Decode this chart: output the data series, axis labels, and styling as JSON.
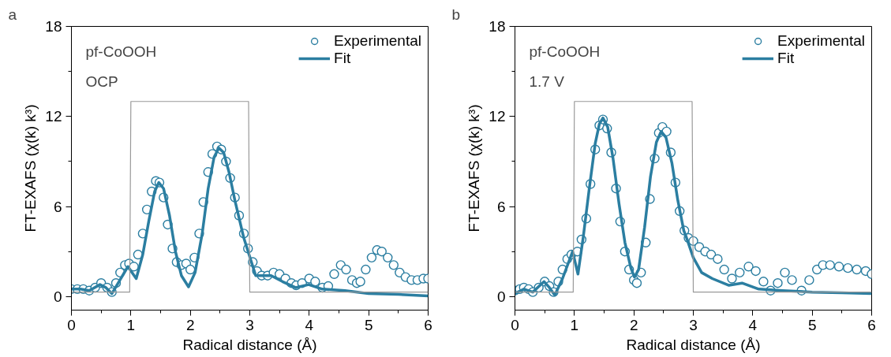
{
  "chart_data": [
    {
      "type": "line",
      "title": "a",
      "xlabel": "Radical distance (Å)",
      "ylabel": "FT-EXAFS (χ(k) k³)",
      "annotations": [
        "pf-CoOOH",
        "OCP"
      ],
      "xlim": [
        0,
        6
      ],
      "ylim": [
        -0.9,
        18
      ],
      "xticks": [
        0,
        1,
        2,
        3,
        4,
        5,
        6
      ],
      "yticks": [
        0,
        6,
        12,
        18
      ],
      "grid": false,
      "legend": "top right",
      "series": [
        {
          "name": "Experimental",
          "type": "scatter",
          "marker": "circle",
          "color": "#2b7ea1",
          "x": [
            0,
            0.1,
            0.2,
            0.3,
            0.4,
            0.5,
            0.6,
            0.68,
            0.75,
            0.82,
            0.9,
            0.97,
            1.05,
            1.12,
            1.2,
            1.27,
            1.35,
            1.42,
            1.48,
            1.55,
            1.62,
            1.7,
            1.77,
            1.85,
            1.93,
            2.0,
            2.07,
            2.15,
            2.22,
            2.3,
            2.37,
            2.45,
            2.52,
            2.6,
            2.67,
            2.75,
            2.82,
            2.9,
            2.97,
            3.05,
            3.12,
            3.2,
            3.3,
            3.4,
            3.5,
            3.6,
            3.7,
            3.78,
            3.88,
            4.0,
            4.1,
            4.22,
            4.32,
            4.42,
            4.53,
            4.62,
            4.72,
            4.8,
            4.86,
            4.95,
            5.05,
            5.14,
            5.22,
            5.32,
            5.42,
            5.52,
            5.62,
            5.72,
            5.82,
            5.92,
            6.0
          ],
          "values": [
            0.5,
            0.5,
            0.5,
            0.4,
            0.6,
            0.9,
            0.6,
            0.3,
            0.9,
            1.6,
            2.1,
            2.2,
            2.0,
            2.8,
            4.2,
            5.8,
            7.0,
            7.7,
            7.6,
            6.6,
            4.8,
            3.2,
            2.3,
            2.1,
            2.2,
            1.8,
            2.6,
            4.2,
            6.3,
            8.3,
            9.5,
            10.0,
            9.8,
            9.0,
            7.9,
            6.6,
            5.4,
            4.2,
            3.2,
            2.3,
            1.7,
            1.4,
            1.4,
            1.6,
            1.5,
            1.2,
            0.9,
            0.75,
            0.9,
            1.2,
            1.0,
            0.6,
            0.7,
            1.5,
            2.1,
            1.8,
            1.1,
            0.9,
            1.0,
            1.8,
            2.6,
            3.1,
            3.0,
            2.6,
            2.1,
            1.6,
            1.3,
            1.1,
            1.1,
            1.2,
            1.2
          ]
        },
        {
          "name": "Fit",
          "type": "line",
          "color": "#2b7ea1",
          "x": [
            0,
            0.15,
            0.3,
            0.48,
            0.58,
            0.68,
            0.8,
            0.95,
            1.09,
            1.2,
            1.3,
            1.4,
            1.47,
            1.55,
            1.65,
            1.75,
            1.85,
            1.97,
            2.08,
            2.2,
            2.3,
            2.4,
            2.48,
            2.56,
            2.65,
            2.75,
            2.9,
            3.1,
            3.36,
            3.55,
            3.77,
            3.99,
            4.22,
            4.6,
            5.0,
            5.5,
            6.0
          ],
          "values": [
            0.5,
            0.5,
            0.4,
            0.8,
            0.6,
            0.2,
            1.0,
            2.0,
            1.2,
            2.8,
            5.0,
            7.0,
            7.6,
            7.2,
            5.4,
            3.0,
            1.4,
            0.65,
            1.6,
            4.2,
            7.2,
            9.3,
            9.9,
            9.6,
            8.3,
            6.4,
            3.9,
            1.4,
            1.4,
            1.0,
            0.6,
            0.8,
            0.5,
            0.4,
            0.2,
            0.15,
            0.05
          ]
        },
        {
          "color": "#999999",
          "x": [
            0,
            0.98,
            1.0,
            2.98,
            3.0,
            6
          ],
          "values": [
            0.3,
            0.3,
            13,
            13,
            0.3,
            0.3
          ]
        }
      ]
    },
    {
      "type": "line",
      "title": "b",
      "xlabel": "Radical distance (Å)",
      "ylabel": "FT-EXAFS (χ(k) k³)",
      "annotations": [
        "pf-CoOOH",
        "1.7 V"
      ],
      "xlim": [
        0,
        6
      ],
      "ylim": [
        -0.9,
        18
      ],
      "xticks": [
        0,
        1,
        2,
        3,
        4,
        5,
        6
      ],
      "yticks": [
        0,
        6,
        12,
        18
      ],
      "grid": false,
      "legend": "top right",
      "series": [
        {
          "name": "Experimental",
          "type": "scatter",
          "marker": "circle",
          "color": "#2b7ea1",
          "x": [
            0,
            0.08,
            0.15,
            0.23,
            0.3,
            0.4,
            0.5,
            0.58,
            0.65,
            0.73,
            0.8,
            0.88,
            0.95,
            1.05,
            1.12,
            1.2,
            1.27,
            1.35,
            1.42,
            1.48,
            1.55,
            1.62,
            1.7,
            1.77,
            1.85,
            1.92,
            2.0,
            2.05,
            2.12,
            2.2,
            2.27,
            2.35,
            2.42,
            2.48,
            2.55,
            2.62,
            2.7,
            2.77,
            2.85,
            2.92,
            3.0,
            3.1,
            3.2,
            3.3,
            3.41,
            3.52,
            3.65,
            3.78,
            3.93,
            4.05,
            4.18,
            4.3,
            4.42,
            4.54,
            4.66,
            4.82,
            4.95,
            5.08,
            5.18,
            5.3,
            5.45,
            5.6,
            5.75,
            5.9,
            6.0
          ],
          "values": [
            0.4,
            0.5,
            0.6,
            0.5,
            0.3,
            0.6,
            1.0,
            0.7,
            0.3,
            1.0,
            1.8,
            2.5,
            2.8,
            3.0,
            3.8,
            5.2,
            7.5,
            9.8,
            11.4,
            11.8,
            11.2,
            9.6,
            7.2,
            5.0,
            3.0,
            1.8,
            1.1,
            0.9,
            1.6,
            3.6,
            6.5,
            9.2,
            10.9,
            11.3,
            11.0,
            9.6,
            7.6,
            5.7,
            4.4,
            3.9,
            3.7,
            3.3,
            3.0,
            2.8,
            2.5,
            1.8,
            1.2,
            1.6,
            2.0,
            1.7,
            1.0,
            0.4,
            0.9,
            1.6,
            1.1,
            0.4,
            1.1,
            1.8,
            2.1,
            2.1,
            2.0,
            1.9,
            1.8,
            1.7,
            1.5
          ]
        },
        {
          "name": "Fit",
          "type": "line",
          "color": "#2b7ea1",
          "x": [
            0,
            0.15,
            0.3,
            0.49,
            0.58,
            0.67,
            0.8,
            0.97,
            1.06,
            1.15,
            1.25,
            1.35,
            1.42,
            1.48,
            1.56,
            1.65,
            1.75,
            1.85,
            1.95,
            2.01,
            2.08,
            2.18,
            2.28,
            2.38,
            2.46,
            2.54,
            2.64,
            2.74,
            2.84,
            2.87,
            3.0,
            3.14,
            3.32,
            3.6,
            3.82,
            4.1,
            4.5,
            5.0,
            5.5,
            6.0
          ],
          "values": [
            0.2,
            0.5,
            0.3,
            1.0,
            0.6,
            0.1,
            1.2,
            3.0,
            1.5,
            4.0,
            7.2,
            10.2,
            11.5,
            11.9,
            11.3,
            9.2,
            6.2,
            3.6,
            1.9,
            1.3,
            1.8,
            4.6,
            8.0,
            10.3,
            11.0,
            10.6,
            8.9,
            6.4,
            4.4,
            4.1,
            2.6,
            1.6,
            1.2,
            0.75,
            0.9,
            0.5,
            0.4,
            0.3,
            0.25,
            0.2
          ]
        },
        {
          "color": "#999999",
          "x": [
            0,
            0.98,
            1.0,
            2.98,
            3.0,
            6
          ],
          "values": [
            0.3,
            0.3,
            13,
            13,
            0.3,
            0.3
          ]
        }
      ]
    }
  ]
}
